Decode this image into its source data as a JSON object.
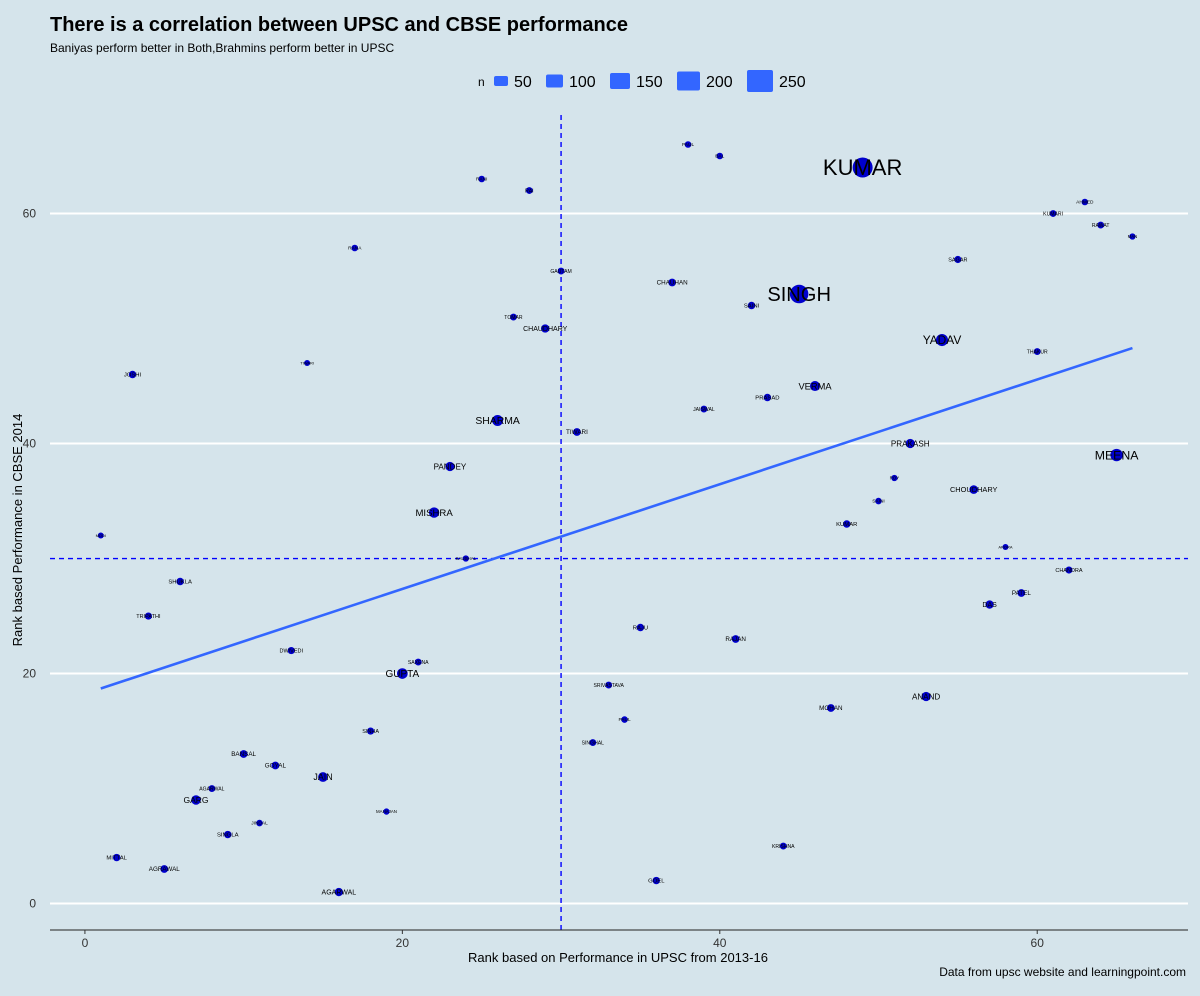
{
  "chart_data": {
    "type": "scatter",
    "title": "There is a correlation between UPSC and CBSE performance",
    "subtitle": "Baniyas perform better in Both,Brahmins perform better in UPSC",
    "caption": "Data from upsc website and learningpoint.com",
    "xlabel": "Rank based on Performance in UPSC from 2013-16",
    "ylabel": "Rank based Performance in CBSE 2014",
    "xlim": [
      -2.2,
      69.5
    ],
    "ylim": [
      -2.3,
      69.0
    ],
    "xticks": [
      0,
      20,
      40,
      60
    ],
    "yticks": [
      0,
      20,
      40,
      60
    ],
    "grid": "horizontal",
    "vline": 30,
    "hline": 30,
    "trend_line": {
      "x": [
        1,
        66
      ],
      "y": [
        18.7,
        48.3
      ]
    },
    "legend": {
      "title": "n",
      "placement": "top",
      "entries": [
        {
          "label": "50",
          "value": 50
        },
        {
          "label": "100",
          "value": 100
        },
        {
          "label": "150",
          "value": 150
        },
        {
          "label": "200",
          "value": 200
        },
        {
          "label": "250",
          "value": 250
        }
      ]
    },
    "colors": {
      "point": "#0000cd",
      "line": "#3366ff",
      "ref_line": "#0000ff",
      "grid": "#ffffff",
      "background": "#d5e4eb",
      "legend_key": "#3366ff"
    },
    "points": [
      {
        "label": "KUMAR",
        "x": 49,
        "y": 64,
        "n": 255
      },
      {
        "label": "SINGH",
        "x": 45,
        "y": 53,
        "n": 230
      },
      {
        "label": "YADAV",
        "x": 54,
        "y": 49,
        "n": 120
      },
      {
        "label": "MEENA",
        "x": 65,
        "y": 39,
        "n": 125
      },
      {
        "label": "SHARMA",
        "x": 26,
        "y": 42,
        "n": 100
      },
      {
        "label": "VERMA",
        "x": 46,
        "y": 45,
        "n": 85
      },
      {
        "label": "PRAKASH",
        "x": 52,
        "y": 40,
        "n": 70
      },
      {
        "label": "GUPTA",
        "x": 20,
        "y": 20,
        "n": 95
      },
      {
        "label": "MISHRA",
        "x": 22,
        "y": 34,
        "n": 90
      },
      {
        "label": "PANDEY",
        "x": 23,
        "y": 38,
        "n": 70
      },
      {
        "label": "CHAUDHARY",
        "x": 29,
        "y": 50,
        "n": 55
      },
      {
        "label": "CHOUDHARY",
        "x": 56,
        "y": 36,
        "n": 60
      },
      {
        "label": "ANAND",
        "x": 53,
        "y": 18,
        "n": 70
      },
      {
        "label": "JAIN",
        "x": 15,
        "y": 11,
        "n": 80
      },
      {
        "label": "GARG",
        "x": 7,
        "y": 9,
        "n": 75
      },
      {
        "label": "DAS",
        "x": 57,
        "y": 26,
        "n": 55
      },
      {
        "label": "CHAUHAN",
        "x": 37,
        "y": 54,
        "n": 45
      },
      {
        "label": "TIWARI",
        "x": 31,
        "y": 41,
        "n": 45
      },
      {
        "label": "RAJAN",
        "x": 41,
        "y": 23,
        "n": 45
      },
      {
        "label": "MOHAN",
        "x": 47,
        "y": 17,
        "n": 45
      },
      {
        "label": "PATEL",
        "x": 59,
        "y": 27,
        "n": 45
      },
      {
        "label": "BANSAL",
        "x": 10,
        "y": 13,
        "n": 45
      },
      {
        "label": "GOYAL",
        "x": 12,
        "y": 12,
        "n": 45
      },
      {
        "label": "AGARWAL",
        "x": 16,
        "y": 1,
        "n": 55
      },
      {
        "label": "AGRAWAL",
        "x": 5,
        "y": 3,
        "n": 45
      },
      {
        "label": "MITTAL",
        "x": 2,
        "y": 4,
        "n": 40
      },
      {
        "label": "SINGLA",
        "x": 9,
        "y": 6,
        "n": 40
      },
      {
        "label": "SHUKLA",
        "x": 6,
        "y": 28,
        "n": 40
      },
      {
        "label": "TRIPATHI",
        "x": 4,
        "y": 25,
        "n": 35
      },
      {
        "label": "DWIVEDI",
        "x": 13,
        "y": 22,
        "n": 35
      },
      {
        "label": "SAXENA",
        "x": 21,
        "y": 21,
        "n": 30
      },
      {
        "label": "SINHA",
        "x": 18,
        "y": 15,
        "n": 35
      },
      {
        "label": "SAINI",
        "x": 42,
        "y": 52,
        "n": 40
      },
      {
        "label": "PRASAD",
        "x": 43,
        "y": 44,
        "n": 40
      },
      {
        "label": "RAJU",
        "x": 35,
        "y": 24,
        "n": 40
      },
      {
        "label": "SRIVASTAVA",
        "x": 33,
        "y": 19,
        "n": 30
      },
      {
        "label": "SINGHAL",
        "x": 32,
        "y": 14,
        "n": 30
      },
      {
        "label": "GOEL",
        "x": 36,
        "y": 2,
        "n": 40
      },
      {
        "label": "KRISHNA",
        "x": 44,
        "y": 5,
        "n": 30
      },
      {
        "label": "KUMAR",
        "x": 48,
        "y": 33,
        "n": 40
      },
      {
        "label": "CHANDRA",
        "x": 62,
        "y": 29,
        "n": 35
      },
      {
        "label": "SAGAR",
        "x": 55,
        "y": 56,
        "n": 35
      },
      {
        "label": "THAKUR",
        "x": 60,
        "y": 48,
        "n": 30
      },
      {
        "label": "JAISWAL",
        "x": 39,
        "y": 43,
        "n": 30
      },
      {
        "label": "GAUTAM",
        "x": 30,
        "y": 55,
        "n": 30
      },
      {
        "label": "TOMAR",
        "x": 27,
        "y": 51,
        "n": 30
      },
      {
        "label": "JOSHI",
        "x": 3,
        "y": 46,
        "n": 40
      },
      {
        "label": "RANA",
        "x": 17,
        "y": 57,
        "n": 25
      },
      {
        "label": "RANI",
        "x": 25,
        "y": 63,
        "n": 25
      },
      {
        "label": "RAI",
        "x": 28,
        "y": 62,
        "n": 30
      },
      {
        "label": "PAUL",
        "x": 38,
        "y": 66,
        "n": 25
      },
      {
        "label": "BAL",
        "x": 40,
        "y": 65,
        "n": 25
      },
      {
        "label": "KUMARI",
        "x": 61,
        "y": 60,
        "n": 30
      },
      {
        "label": "AHMED",
        "x": 63,
        "y": 61,
        "n": 25
      },
      {
        "label": "RAWAT",
        "x": 64,
        "y": 59,
        "n": 30
      },
      {
        "label": "MAN",
        "x": 66,
        "y": 58,
        "n": 20
      },
      {
        "label": "SAINI",
        "x": 50,
        "y": 35,
        "n": 25
      },
      {
        "label": "ROY",
        "x": 51,
        "y": 37,
        "n": 20
      },
      {
        "label": "AGARWAL",
        "x": 8,
        "y": 10,
        "n": 30
      },
      {
        "label": "JINDAL",
        "x": 11,
        "y": 7,
        "n": 25
      },
      {
        "label": "MAHAJAN",
        "x": 19,
        "y": 8,
        "n": 20
      },
      {
        "label": "PAUL",
        "x": 34,
        "y": 16,
        "n": 25
      },
      {
        "label": "KAUSHAL",
        "x": 24,
        "y": 30,
        "n": 20
      },
      {
        "label": "MODI",
        "x": 1,
        "y": 32,
        "n": 15
      },
      {
        "label": "TIWARI",
        "x": 14,
        "y": 47,
        "n": 15
      },
      {
        "label": "ARORA",
        "x": 58,
        "y": 31,
        "n": 15
      }
    ]
  }
}
